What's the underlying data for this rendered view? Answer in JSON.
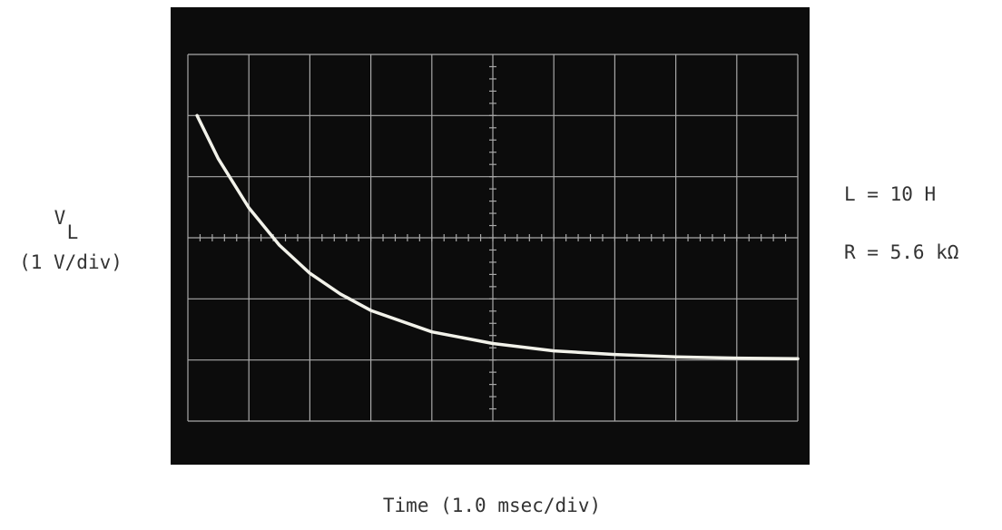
{
  "chart_data": {
    "type": "line",
    "y_label": "V",
    "y_label_sub": "L",
    "y_label_unit": "(1 V/div)",
    "x_label": "Time (1.0 msec/div)",
    "annotations": [
      "L = 10 H",
      "R = 5.6 kΩ"
    ],
    "x": [
      0.15,
      0.5,
      1,
      1.5,
      2,
      2.5,
      3,
      4,
      5,
      6,
      7,
      8,
      9,
      10
    ],
    "series": [
      {
        "color": "#f2f2ea",
        "values": [
          4.0,
          3.29,
          2.49,
          1.88,
          1.42,
          1.08,
          0.81,
          0.46,
          0.27,
          0.15,
          0.09,
          0.05,
          0.03,
          0.02
        ]
      }
    ],
    "xlim": [
      0,
      10
    ],
    "ylim": [
      -1,
      5
    ],
    "xticks": [
      0,
      1,
      2,
      3,
      4,
      5,
      6,
      7,
      8,
      9,
      10
    ],
    "yticks": [
      -1,
      0,
      1,
      2,
      3,
      4,
      5
    ],
    "grid": true
  }
}
